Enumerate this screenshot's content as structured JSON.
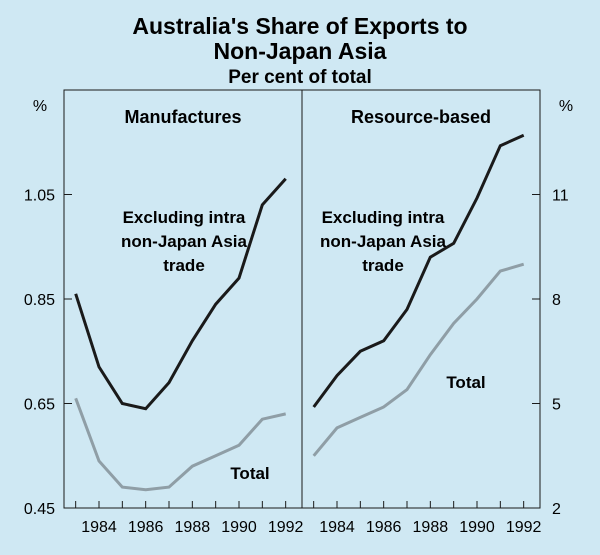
{
  "chart_data": {
    "type": "line",
    "title": "Australia's Share of Exports to",
    "title_line2": "Non-Japan Asia",
    "subtitle": "Per cent of total",
    "panels": [
      {
        "title": "Manufactures",
        "unit": "%",
        "axis_side": "left",
        "ylim": [
          0.45,
          1.25
        ],
        "yticks": [
          0.45,
          0.65,
          0.85,
          1.05
        ],
        "ytick_labels": [
          "0.45",
          "0.65",
          "0.85",
          "1.05"
        ],
        "annotations": [
          {
            "series": "Excluding intra non-Japan Asia trade",
            "lines": [
              "Excluding intra",
              "non-Japan Asia",
              "trade"
            ]
          },
          {
            "series": "Total",
            "lines": [
              "Total"
            ]
          }
        ],
        "series": [
          {
            "name": "Excluding intra non-Japan Asia trade",
            "color": "#1a1a1a",
            "x": [
              1983,
              1984,
              1985,
              1986,
              1987,
              1988,
              1989,
              1990,
              1991,
              1992
            ],
            "values": [
              0.86,
              0.72,
              0.65,
              0.64,
              0.69,
              0.77,
              0.84,
              0.89,
              1.03,
              1.08
            ]
          },
          {
            "name": "Total",
            "color": "#8f9ea6",
            "x": [
              1983,
              1984,
              1985,
              1986,
              1987,
              1988,
              1989,
              1990,
              1991,
              1992
            ],
            "values": [
              0.66,
              0.54,
              0.49,
              0.485,
              0.49,
              0.53,
              0.55,
              0.57,
              0.62,
              0.63
            ]
          }
        ]
      },
      {
        "title": "Resource-based",
        "unit": "%",
        "axis_side": "right",
        "ylim": [
          2,
          14
        ],
        "yticks": [
          2,
          5,
          8,
          11
        ],
        "ytick_labels": [
          "2",
          "5",
          "8",
          "11"
        ],
        "annotations": [
          {
            "series": "Excluding intra non-Japan Asia trade",
            "lines": [
              "Excluding intra",
              "non-Japan Asia",
              "trade"
            ]
          },
          {
            "series": "Total",
            "lines": [
              "Total"
            ]
          }
        ],
        "series": [
          {
            "name": "Excluding intra non-Japan Asia trade",
            "color": "#1a1a1a",
            "x": [
              1983,
              1984,
              1985,
              1986,
              1987,
              1988,
              1989,
              1990,
              1991,
              1992
            ],
            "values": [
              4.9,
              5.8,
              6.5,
              6.8,
              7.7,
              9.2,
              9.6,
              10.9,
              12.4,
              12.7
            ]
          },
          {
            "name": "Total",
            "color": "#8f9ea6",
            "x": [
              1983,
              1984,
              1985,
              1986,
              1987,
              1988,
              1989,
              1990,
              1991,
              1992
            ],
            "values": [
              3.5,
              4.3,
              4.6,
              4.9,
              5.4,
              6.4,
              7.3,
              8.0,
              8.8,
              9.0
            ]
          }
        ]
      }
    ],
    "xticks": [
      1984,
      1986,
      1988,
      1990,
      1992
    ],
    "xtick_labels": [
      "1984",
      "1986",
      "1988",
      "1990",
      "1992"
    ],
    "xlim": [
      1982.5,
      1992.7
    ]
  }
}
